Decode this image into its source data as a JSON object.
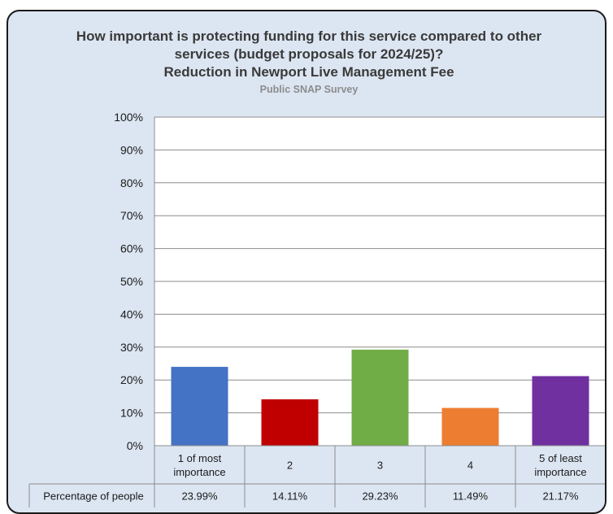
{
  "chart_data": {
    "type": "bar",
    "title": [
      "How important is protecting funding for this service compared to other",
      "services (budget proposals for 2024/25)?",
      "Reduction in Newport Live Management Fee"
    ],
    "subtitle": "Public SNAP Survey",
    "categories": [
      [
        "1 of most",
        "importance"
      ],
      [
        "2"
      ],
      [
        "3"
      ],
      [
        "4"
      ],
      [
        "5 of least",
        "importance"
      ]
    ],
    "series": [
      {
        "name": "Percentage of people",
        "values": [
          23.99,
          14.11,
          29.23,
          11.49,
          21.17
        ],
        "value_labels": [
          "23.99%",
          "14.11%",
          "29.23%",
          "11.49%",
          "21.17%"
        ]
      }
    ],
    "bar_colors": [
      "#4472c4",
      "#c00000",
      "#70ad47",
      "#ed7d31",
      "#7030a0"
    ],
    "ylim": [
      0,
      100
    ],
    "yticks": [
      "0%",
      "10%",
      "20%",
      "30%",
      "40%",
      "50%",
      "60%",
      "70%",
      "80%",
      "90%",
      "100%"
    ],
    "grid": true,
    "legend": "data-table-below",
    "xlabel": "",
    "ylabel": ""
  }
}
